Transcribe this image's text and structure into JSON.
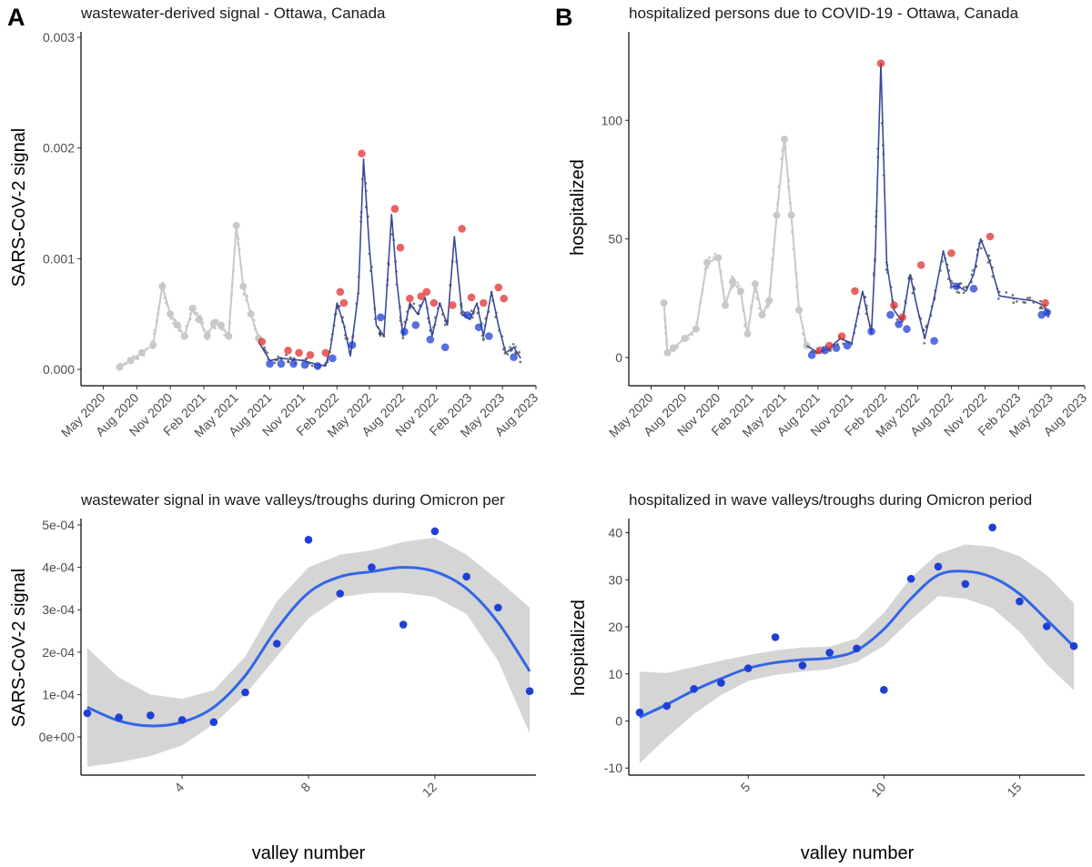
{
  "chart_data": [
    {
      "panel": "A-top",
      "label": "A",
      "type": "scatter",
      "title": "wastewater-derived signal - Ottawa, Canada",
      "xlabel": "",
      "ylabel": "SARS-CoV-2 signal",
      "xlim": [
        "2020-03-01",
        "2023-08-01"
      ],
      "ylim": [
        0,
        0.003
      ],
      "x_ticks": [
        "May 2020",
        "Aug 2020",
        "Nov 2020",
        "Feb 2021",
        "May 2021",
        "Aug 2021",
        "Nov 2021",
        "Feb 2022",
        "May 2022",
        "Aug 2022",
        "Nov 2022",
        "Feb 2023",
        "May 2023",
        "Aug 2023"
      ],
      "y_ticks": [
        "0.000",
        "0.001",
        "0.002",
        "0.003"
      ],
      "colors": {
        "pre_omicron": "#c8c8c8",
        "trend": "#3b4a9a",
        "raw": "#222222",
        "peaks": "#e03030",
        "valleys": "#1f3fd6"
      },
      "series": [
        {
          "role": "pre-omicron smoothed",
          "x": [
            "2020-06-15",
            "2020-07-15",
            "2020-08-15",
            "2020-09-15",
            "2020-10-10",
            "2020-11-01",
            "2020-11-20",
            "2020-12-10",
            "2021-01-01",
            "2021-01-20",
            "2021-02-10",
            "2021-03-01",
            "2021-03-20",
            "2021-04-10",
            "2021-05-01",
            "2021-05-20",
            "2021-06-10",
            "2021-07-01"
          ],
          "y": [
            2e-05,
            8e-05,
            0.00015,
            0.00022,
            0.00075,
            0.0005,
            0.0004,
            0.0003,
            0.00055,
            0.00045,
            0.0003,
            0.00042,
            0.0004,
            0.0003,
            0.0013,
            0.00075,
            0.0005,
            0.00028
          ]
        },
        {
          "role": "omicron trend",
          "x": [
            "2021-07-01",
            "2021-08-01",
            "2021-09-01",
            "2021-10-01",
            "2021-11-01",
            "2021-12-01",
            "2022-01-01",
            "2022-01-15",
            "2022-02-01",
            "2022-02-20",
            "2022-03-10",
            "2022-04-01",
            "2022-04-15",
            "2022-05-01",
            "2022-05-20",
            "2022-06-10",
            "2022-07-01",
            "2022-07-15",
            "2022-08-01",
            "2022-08-20",
            "2022-09-10",
            "2022-10-01",
            "2022-10-20",
            "2022-11-10",
            "2022-12-01",
            "2022-12-20",
            "2023-01-10",
            "2023-02-01",
            "2023-02-20",
            "2023-03-10",
            "2023-04-01",
            "2023-04-20",
            "2023-05-10",
            "2023-06-01",
            "2023-06-20"
          ],
          "y": [
            0.00025,
            8e-05,
            0.0001,
            9e-05,
            8e-05,
            5e-05,
            3e-05,
            0.0002,
            0.0006,
            0.0004,
            0.00012,
            0.0007,
            0.0019,
            0.0011,
            0.0004,
            0.0003,
            0.0014,
            0.0008,
            0.0003,
            0.0006,
            0.0005,
            0.00065,
            0.0003,
            0.0006,
            0.0004,
            0.0012,
            0.0005,
            0.00045,
            0.0006,
            0.0003,
            0.0007,
            0.0004,
            0.00015,
            0.0002,
            0.0001
          ]
        },
        {
          "role": "peaks",
          "x": [
            "2021-07-10",
            "2021-09-20",
            "2021-10-20",
            "2021-11-20",
            "2022-01-01",
            "2022-02-10",
            "2022-02-20",
            "2022-04-10",
            "2022-07-10",
            "2022-07-25",
            "2022-08-20",
            "2022-09-20",
            "2022-10-05",
            "2022-10-25",
            "2022-12-15",
            "2023-01-10",
            "2023-02-05",
            "2023-03-10",
            "2023-04-20",
            "2023-05-05"
          ],
          "y": [
            0.00025,
            0.00017,
            0.00015,
            0.00013,
            0.00015,
            0.0007,
            0.0006,
            0.00195,
            0.00145,
            0.0011,
            0.00064,
            0.00066,
            0.0007,
            0.0006,
            0.00058,
            0.00127,
            0.00065,
            0.0006,
            0.00074,
            0.00064
          ]
        },
        {
          "role": "valleys",
          "x": [
            "2021-08-01",
            "2021-09-01",
            "2021-10-05",
            "2021-11-05",
            "2021-12-10",
            "2022-01-20",
            "2022-03-15",
            "2022-06-01",
            "2022-08-05",
            "2022-09-05",
            "2022-10-15",
            "2022-11-25",
            "2023-01-25",
            "2023-02-25",
            "2023-03-25",
            "2023-06-01"
          ],
          "y": [
            5e-05,
            5e-05,
            5e-05,
            4e-05,
            3e-05,
            0.0001,
            0.00022,
            0.00047,
            0.00034,
            0.0004,
            0.00027,
            0.0002,
            0.00049,
            0.00038,
            0.0003,
            0.00011
          ]
        }
      ]
    },
    {
      "panel": "B-top",
      "label": "B",
      "type": "scatter",
      "title": "hospitalized persons due to COVID-19 - Ottawa, Canada",
      "xlabel": "",
      "ylabel": "hospitalized",
      "xlim": [
        "2020-03-01",
        "2023-08-01"
      ],
      "ylim": [
        -5,
        135
      ],
      "x_ticks": [
        "May 2020",
        "Aug 2020",
        "Nov 2020",
        "Feb 2021",
        "May 2021",
        "Aug 2021",
        "Nov 2021",
        "Feb 2022",
        "May 2022",
        "Aug 2022",
        "Nov 2022",
        "Feb 2023",
        "May 2023",
        "Aug 2023"
      ],
      "y_ticks": [
        "0",
        "50",
        "100"
      ],
      "colors": {
        "pre_omicron": "#c8c8c8",
        "trend": "#3b4a9a",
        "raw": "#222222",
        "peaks": "#e03030",
        "valleys": "#1f3fd6"
      },
      "series": [
        {
          "role": "pre-omicron smoothed",
          "x": [
            "2020-06-05",
            "2020-06-15",
            "2020-07-01",
            "2020-08-01",
            "2020-09-01",
            "2020-10-01",
            "2020-11-01",
            "2020-11-20",
            "2020-12-10",
            "2021-01-01",
            "2021-01-20",
            "2021-02-10",
            "2021-03-01",
            "2021-03-20",
            "2021-04-10",
            "2021-05-01",
            "2021-05-20",
            "2021-06-10",
            "2021-07-01"
          ],
          "y": [
            23,
            2,
            4,
            8,
            12,
            40,
            42,
            22,
            32,
            28,
            10,
            31,
            18,
            24,
            60,
            92,
            60,
            20,
            5
          ]
        },
        {
          "role": "omicron trend",
          "x": [
            "2021-07-01",
            "2021-08-01",
            "2021-09-01",
            "2021-10-01",
            "2021-11-01",
            "2021-12-01",
            "2021-12-25",
            "2022-01-05",
            "2022-01-20",
            "2022-02-05",
            "2022-02-25",
            "2022-03-20",
            "2022-04-10",
            "2022-05-01",
            "2022-05-20",
            "2022-06-15",
            "2022-07-10",
            "2022-08-01",
            "2022-08-20",
            "2022-09-10",
            "2022-10-01",
            "2022-10-20",
            "2022-11-15",
            "2022-12-10",
            "2023-01-20",
            "2023-03-10",
            "2023-04-10",
            "2023-04-25"
          ],
          "y": [
            5,
            2,
            4,
            8,
            6,
            28,
            10,
            45,
            124,
            40,
            20,
            15,
            35,
            20,
            8,
            25,
            45,
            30,
            30,
            28,
            35,
            50,
            40,
            26,
            25,
            24,
            22,
            18
          ]
        },
        {
          "role": "peaks",
          "x": [
            "2021-08-05",
            "2021-09-01",
            "2021-10-05",
            "2021-11-10",
            "2022-01-20",
            "2022-02-25",
            "2022-03-20",
            "2022-05-10",
            "2022-08-01",
            "2022-11-15",
            "2023-04-15"
          ],
          "y": [
            3,
            5,
            9,
            28,
            124,
            22,
            17,
            39,
            44,
            51,
            23
          ]
        },
        {
          "role": "valleys",
          "x": [
            "2021-07-15",
            "2021-08-20",
            "2021-09-20",
            "2021-10-20",
            "2021-12-25",
            "2022-02-15",
            "2022-03-10",
            "2022-04-01",
            "2022-06-15",
            "2022-08-15",
            "2022-10-01",
            "2023-04-05",
            "2023-04-20"
          ],
          "y": [
            1,
            3,
            4,
            5,
            11,
            18,
            14,
            12,
            7,
            30,
            29,
            18,
            19
          ]
        }
      ]
    },
    {
      "panel": "A-bottom",
      "type": "scatter",
      "title": "wastewater signal in wave valleys/troughs during Omicron per",
      "xlabel": "valley number",
      "ylabel": "SARS-CoV-2 signal",
      "xlim": [
        0.8,
        15.2
      ],
      "ylim": [
        -9e-05,
        0.000515
      ],
      "x_ticks": [
        "4",
        "8",
        "12"
      ],
      "y_ticks": [
        "0e+00",
        "1e-04",
        "2e-04",
        "3e-04",
        "4e-04",
        "5e-04"
      ],
      "colors": {
        "points": "#1f3fd6",
        "smooth": "#3366e6",
        "band": "#d0d0d0"
      },
      "x": [
        1,
        2,
        3,
        4,
        5,
        6,
        7,
        8,
        9,
        10,
        11,
        12,
        13,
        14,
        15
      ],
      "y": [
        5.6e-05,
        4.6e-05,
        5.1e-05,
        4e-05,
        3.5e-05,
        0.000105,
        0.00022,
        0.000465,
        0.000338,
        0.0004,
        0.000265,
        0.000485,
        0.000378,
        0.000305,
        0.000108
      ],
      "smooth_x": [
        1,
        2,
        3,
        4,
        5,
        6,
        7,
        8,
        9,
        10,
        11,
        12,
        13,
        14,
        15
      ],
      "smooth_y": [
        7e-05,
        3.8e-05,
        2.6e-05,
        3.5e-05,
        7e-05,
        0.000145,
        0.000255,
        0.00034,
        0.000378,
        0.00039,
        0.0004,
        0.00039,
        0.00035,
        0.00027,
        0.000155
      ],
      "band_lower": [
        -7e-05,
        -6e-05,
        -4.5e-05,
        -2e-05,
        3e-05,
        0.0001,
        0.00019,
        0.00028,
        0.00033,
        0.00034,
        0.00034,
        0.00033,
        0.00029,
        0.00018,
        8e-06
      ],
      "band_upper": [
        0.00021,
        0.00014,
        0.0001,
        9e-05,
        0.00011,
        0.00019,
        0.00032,
        0.0004,
        0.00043,
        0.00044,
        0.00046,
        0.00047,
        0.00043,
        0.00037,
        0.000305
      ]
    },
    {
      "panel": "B-bottom",
      "type": "scatter",
      "title": "hospitalized in wave valleys/troughs during Omicron period",
      "xlabel": "valley number",
      "ylabel": "hospitalized",
      "xlim": [
        0.6,
        17.4
      ],
      "ylim": [
        -11.5,
        43
      ],
      "x_ticks": [
        "5",
        "10",
        "15"
      ],
      "y_ticks": [
        "-10",
        "0",
        "10",
        "20",
        "30",
        "40"
      ],
      "colors": {
        "points": "#1f3fd6",
        "smooth": "#3366e6",
        "band": "#d0d0d0"
      },
      "x": [
        1,
        2,
        3,
        4,
        5,
        6,
        7,
        8,
        9,
        10,
        11,
        12,
        13,
        14,
        15,
        16,
        17
      ],
      "y": [
        1.8,
        3.2,
        6.8,
        8.1,
        11.2,
        17.8,
        11.8,
        14.5,
        15.4,
        6.6,
        30.2,
        32.8,
        29.1,
        41.1,
        25.4,
        20.1,
        15.9
      ],
      "smooth_x": [
        1,
        2,
        3,
        4,
        5,
        6,
        7,
        8,
        9,
        10,
        11,
        12,
        13,
        14,
        15,
        16,
        17
      ],
      "smooth_y": [
        0.8,
        3.5,
        6.5,
        9.0,
        11.2,
        12.4,
        13.0,
        13.4,
        15.0,
        19.5,
        26.0,
        31.0,
        31.8,
        30.5,
        27.0,
        21.5,
        15.8
      ],
      "band_lower": [
        -9,
        -3.5,
        1.5,
        5.5,
        8.5,
        9.8,
        10.5,
        11.0,
        12.5,
        16.0,
        21.5,
        26.5,
        26.0,
        24.0,
        19.0,
        12.0,
        6.5
      ],
      "band_upper": [
        10.5,
        10.2,
        11.5,
        12.8,
        14.0,
        15.0,
        15.6,
        15.8,
        17.5,
        23.0,
        30.5,
        35.5,
        37.5,
        37.0,
        35.0,
        31.0,
        25.0
      ]
    }
  ]
}
